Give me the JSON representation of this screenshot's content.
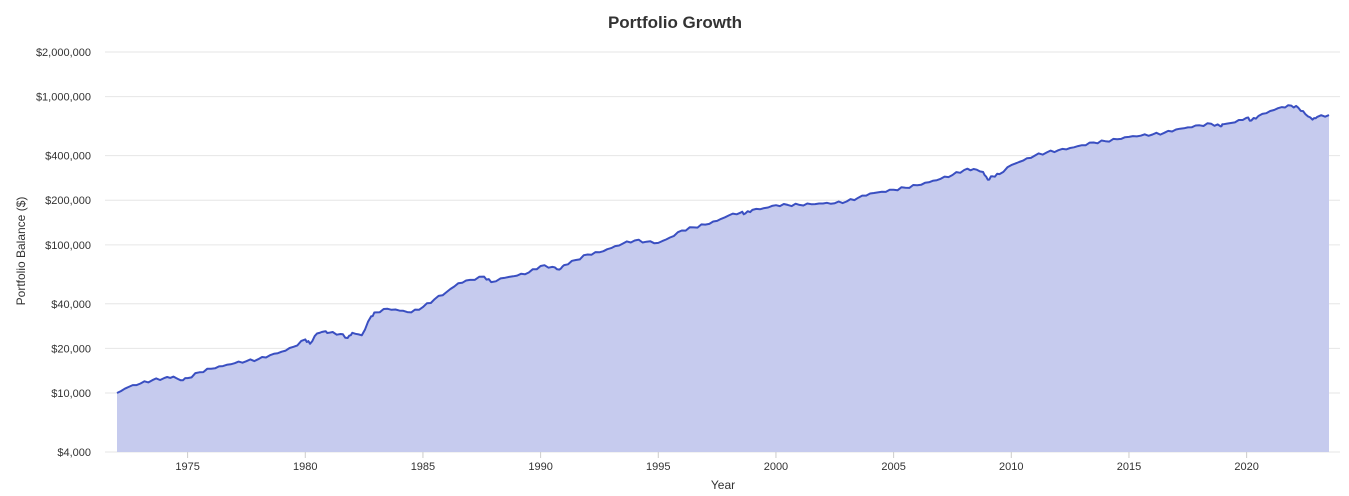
{
  "chart_data": {
    "type": "area",
    "title": "Portfolio Growth",
    "xlabel": "Year",
    "ylabel": "Portfolio Balance ($)",
    "y_scale": "log",
    "ylim": [
      4000,
      2000000
    ],
    "xlim": [
      1972,
      2023.5
    ],
    "grid": true,
    "legend": "none",
    "colors": {
      "line": "#3a4fc1",
      "fill": "#c6cbee",
      "grid": "#e6e6e6"
    },
    "y_ticks": [
      {
        "value": 4000,
        "label": "$4,000"
      },
      {
        "value": 10000,
        "label": "$10,000"
      },
      {
        "value": 20000,
        "label": "$20,000"
      },
      {
        "value": 40000,
        "label": "$40,000"
      },
      {
        "value": 100000,
        "label": "$100,000"
      },
      {
        "value": 200000,
        "label": "$200,000"
      },
      {
        "value": 400000,
        "label": "$400,000"
      },
      {
        "value": 1000000,
        "label": "$1,000,000"
      },
      {
        "value": 2000000,
        "label": "$2,000,000"
      }
    ],
    "x_ticks": [
      {
        "value": 1975,
        "label": "1975"
      },
      {
        "value": 1980,
        "label": "1980"
      },
      {
        "value": 1985,
        "label": "1985"
      },
      {
        "value": 1990,
        "label": "1990"
      },
      {
        "value": 1995,
        "label": "1995"
      },
      {
        "value": 2000,
        "label": "2000"
      },
      {
        "value": 2005,
        "label": "2005"
      },
      {
        "value": 2010,
        "label": "2010"
      },
      {
        "value": 2015,
        "label": "2015"
      },
      {
        "value": 2020,
        "label": "2020"
      }
    ],
    "series": [
      {
        "x": [
          1972.0,
          1972.5,
          1973.0,
          1973.5,
          1974.0,
          1974.4,
          1974.7,
          1975.0,
          1975.5,
          1976.0,
          1976.5,
          1977.0,
          1977.5,
          1978.0,
          1978.5,
          1979.0,
          1979.5,
          1980.0,
          1980.2,
          1980.5,
          1980.8,
          1981.0,
          1981.5,
          1981.8,
          1982.0,
          1982.4,
          1982.8,
          1983.0,
          1983.5,
          1984.0,
          1984.5,
          1985.0,
          1985.5,
          1986.0,
          1986.5,
          1987.0,
          1987.6,
          1987.9,
          1988.5,
          1989.0,
          1989.5,
          1990.0,
          1990.5,
          1990.8,
          1991.0,
          1991.5,
          1992.0,
          1992.5,
          1993.0,
          1993.5,
          1994.0,
          1994.5,
          1995.0,
          1995.5,
          1996.0,
          1996.5,
          1997.0,
          1997.5,
          1998.0,
          1998.5,
          1998.7,
          1999.0,
          1999.5,
          2000.0,
          2000.5,
          2001.0,
          2001.5,
          2002.0,
          2002.5,
          2003.0,
          2003.5,
          2004.0,
          2004.5,
          2005.0,
          2005.5,
          2006.0,
          2006.5,
          2007.0,
          2007.5,
          2008.0,
          2008.4,
          2008.8,
          2009.0,
          2009.2,
          2009.5,
          2010.0,
          2010.5,
          2011.0,
          2011.5,
          2012.0,
          2012.5,
          2013.0,
          2013.5,
          2014.0,
          2014.5,
          2015.0,
          2015.5,
          2016.0,
          2016.5,
          2017.0,
          2017.5,
          2018.0,
          2018.5,
          2018.9,
          2019.0,
          2019.5,
          2020.0,
          2020.2,
          2020.5,
          2021.0,
          2021.5,
          2021.9,
          2022.2,
          2022.5,
          2022.8,
          2023.0,
          2023.5
        ],
        "y": [
          10000,
          11000,
          11600,
          12200,
          12600,
          12900,
          12200,
          12600,
          13800,
          14600,
          15200,
          15900,
          16400,
          16900,
          18000,
          19000,
          20500,
          23000,
          21500,
          25200,
          26000,
          25500,
          25000,
          23500,
          25500,
          24500,
          33000,
          35000,
          37000,
          36000,
          35000,
          38000,
          43000,
          48000,
          55000,
          58000,
          61000,
          56000,
          60000,
          62000,
          65000,
          72000,
          71000,
          68000,
          73000,
          79000,
          86000,
          89000,
          95000,
          102000,
          107000,
          105000,
          103000,
          112000,
          125000,
          131000,
          137000,
          145000,
          158000,
          165000,
          163000,
          172000,
          177000,
          185000,
          186000,
          186000,
          188000,
          190000,
          191000,
          196000,
          208000,
          222000,
          228000,
          235000,
          243000,
          252000,
          264000,
          279000,
          296000,
          320000,
          325000,
          310000,
          275000,
          290000,
          300000,
          345000,
          370000,
          400000,
          420000,
          435000,
          450000,
          470000,
          490000,
          500000,
          515000,
          535000,
          545000,
          555000,
          570000,
          600000,
          620000,
          640000,
          655000,
          630000,
          650000,
          670000,
          720000,
          690000,
          740000,
          800000,
          850000,
          870000,
          840000,
          760000,
          700000,
          730000,
          750000
        ]
      }
    ]
  }
}
